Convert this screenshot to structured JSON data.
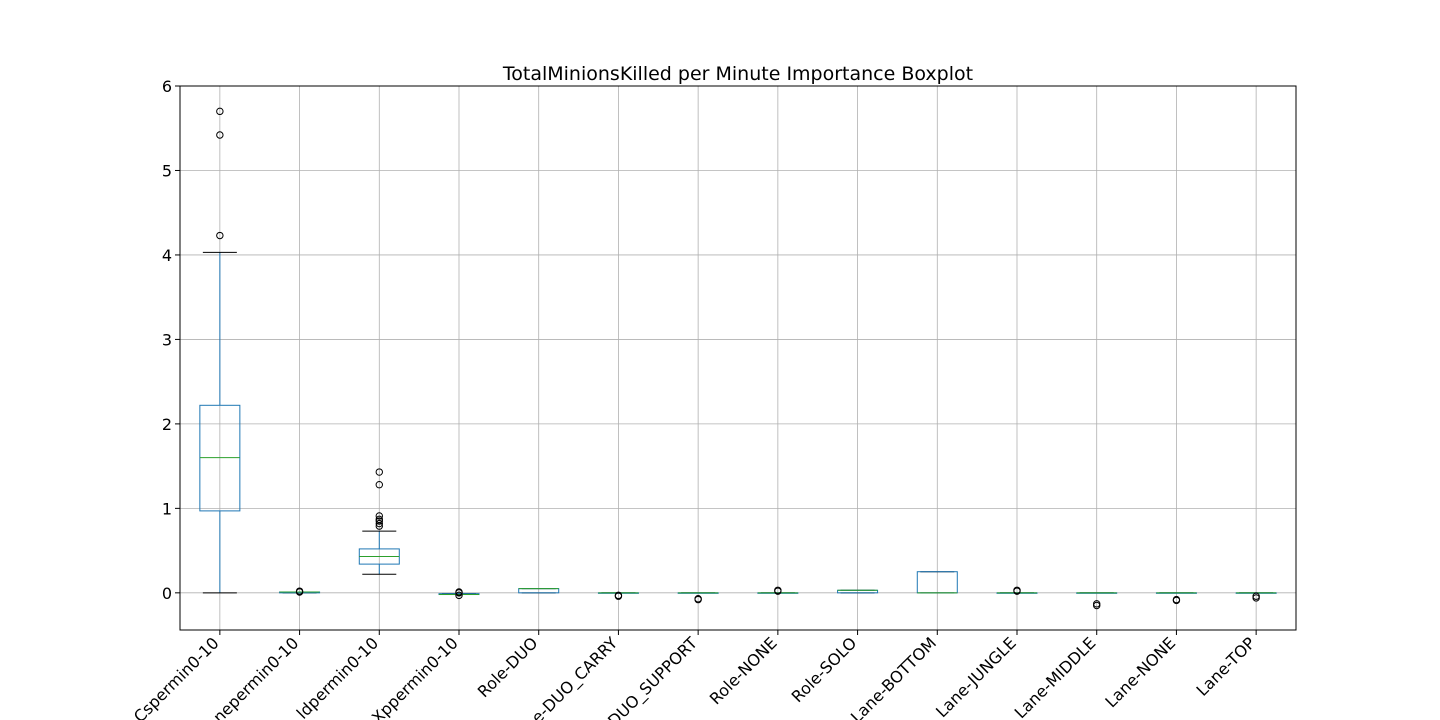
{
  "chart_data": {
    "type": "boxplot",
    "title": "TotalMinionsKilled per Minute Importance Boxplot",
    "xlabel": "",
    "ylabel": "",
    "ylim": [
      -0.44,
      6.0
    ],
    "yticks": [
      0,
      1,
      2,
      3,
      4,
      5,
      6
    ],
    "grid": true,
    "colors": {
      "box": "#1f77b4",
      "median": "#2ca02c",
      "whisker": "#1f77b4",
      "cap": "#000000",
      "grid": "#b0b0b0",
      "flier": "#000000"
    },
    "categories": [
      "Cspermin0-10",
      "nepermin0-10",
      "ldpermin0-10",
      "Xppermin0-10",
      "Role-DUO",
      "e-DUO_CARRY",
      "DUO_SUPPORT",
      "Role-NONE",
      "Role-SOLO",
      "Lane-BOTTOM",
      "Lane-JUNGLE",
      "Lane-MIDDLE",
      "Lane-NONE",
      "Lane-TOP"
    ],
    "boxes": [
      {
        "whislo": 0.0,
        "q1": 0.97,
        "med": 1.6,
        "q3": 2.22,
        "whishi": 4.03,
        "fliers": [
          4.23,
          5.42,
          5.7
        ]
      },
      {
        "whislo": 0.0,
        "q1": 0.0,
        "med": 0.01,
        "q3": 0.01,
        "whishi": 0.01,
        "fliers": [
          0.01,
          0.02
        ]
      },
      {
        "whislo": 0.22,
        "q1": 0.34,
        "med": 0.43,
        "q3": 0.52,
        "whishi": 0.73,
        "fliers": [
          0.79,
          0.82,
          0.85,
          0.87,
          0.91,
          1.28,
          1.43
        ]
      },
      {
        "whislo": -0.02,
        "q1": -0.02,
        "med": -0.02,
        "q3": -0.01,
        "whishi": -0.01,
        "fliers": [
          -0.03,
          0.0,
          0.01
        ]
      },
      {
        "whislo": 0.0,
        "q1": 0.0,
        "med": 0.05,
        "q3": 0.05,
        "whishi": 0.05,
        "fliers": []
      },
      {
        "whislo": 0.0,
        "q1": 0.0,
        "med": 0.0,
        "q3": 0.0,
        "whishi": 0.0,
        "fliers": [
          -0.04,
          -0.03
        ]
      },
      {
        "whislo": 0.0,
        "q1": 0.0,
        "med": 0.0,
        "q3": 0.0,
        "whishi": 0.0,
        "fliers": [
          -0.08,
          -0.07
        ]
      },
      {
        "whislo": 0.0,
        "q1": 0.0,
        "med": 0.0,
        "q3": 0.0,
        "whishi": 0.0,
        "fliers": [
          0.02,
          0.03
        ]
      },
      {
        "whislo": 0.0,
        "q1": 0.0,
        "med": 0.03,
        "q3": 0.03,
        "whishi": 0.03,
        "fliers": []
      },
      {
        "whislo": 0.0,
        "q1": 0.0,
        "med": 0.0,
        "q3": 0.25,
        "whishi": 0.25,
        "fliers": []
      },
      {
        "whislo": 0.0,
        "q1": 0.0,
        "med": 0.0,
        "q3": 0.0,
        "whishi": 0.0,
        "fliers": [
          0.02,
          0.03
        ]
      },
      {
        "whislo": 0.0,
        "q1": 0.0,
        "med": 0.0,
        "q3": 0.0,
        "whishi": 0.0,
        "fliers": [
          -0.15,
          -0.13
        ]
      },
      {
        "whislo": 0.0,
        "q1": 0.0,
        "med": 0.0,
        "q3": 0.0,
        "whishi": 0.0,
        "fliers": [
          -0.09,
          -0.08
        ]
      },
      {
        "whislo": 0.0,
        "q1": 0.0,
        "med": 0.0,
        "q3": 0.0,
        "whishi": 0.0,
        "fliers": [
          -0.06,
          -0.04
        ]
      }
    ]
  }
}
